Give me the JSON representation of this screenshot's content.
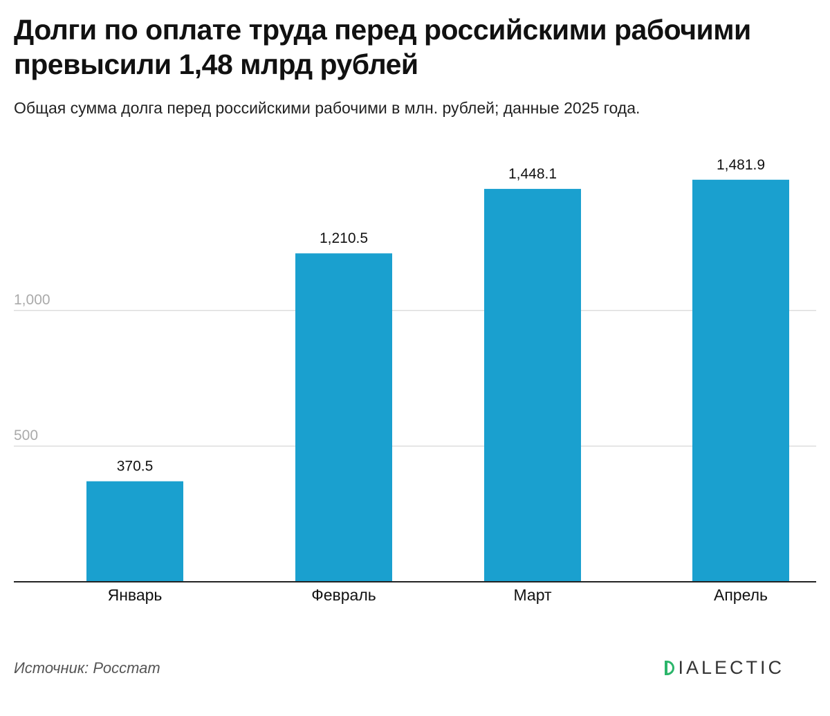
{
  "header": {
    "title": "Долги по оплате труда перед российскими рабочими превысили 1,48 млрд рублей",
    "subtitle": "Общая сумма долга перед российскими рабочими в млн. рублей; данные 2025 года."
  },
  "footer": {
    "source": "Источник: Росстат",
    "logo_text": "IALECTIC",
    "logo_full": "DIALECTIC",
    "logo_color": "#2bb56a"
  },
  "chart_data": {
    "type": "bar",
    "title": "Долги по оплате труда перед российскими рабочими превысили 1,48 млрд рублей",
    "subtitle": "Общая сумма долга перед российскими рабочими в млн. рублей; данные 2025 года.",
    "categories": [
      "Январь",
      "Февраль",
      "Март",
      "Апрель"
    ],
    "values": [
      370.5,
      1210.5,
      1448.1,
      1481.9
    ],
    "value_labels": [
      "370.5",
      "1,210.5",
      "1,448.1",
      "1,481.9"
    ],
    "y_ticks": [
      500,
      1000
    ],
    "y_tick_labels": [
      "500",
      "1,000"
    ],
    "ylim": [
      0,
      1600
    ],
    "grid": true,
    "legend": "none",
    "bar_color": "#1aa0cf",
    "gridline_color": "#dddddd",
    "tick_label_color": "#aaaaaa",
    "baseline_color": "#222222"
  }
}
